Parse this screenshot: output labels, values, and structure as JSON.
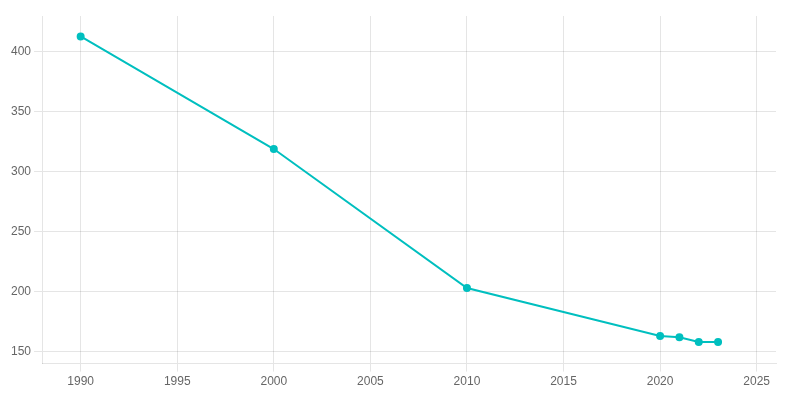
{
  "chart_data": {
    "type": "line",
    "x": [
      1990,
      2000,
      2010,
      2020,
      2021,
      2022,
      2023
    ],
    "values": [
      413,
      319,
      203,
      163,
      162,
      158,
      158
    ],
    "color": "#00BFBF",
    "marker": "o",
    "xlim": [
      1988,
      2026
    ],
    "xticks": [
      1990,
      1995,
      2000,
      2005,
      2010,
      2015,
      2020,
      2025
    ],
    "ylim": [
      140,
      430
    ],
    "yticks": [
      150,
      200,
      250,
      300,
      350,
      400
    ],
    "grid": true
  }
}
